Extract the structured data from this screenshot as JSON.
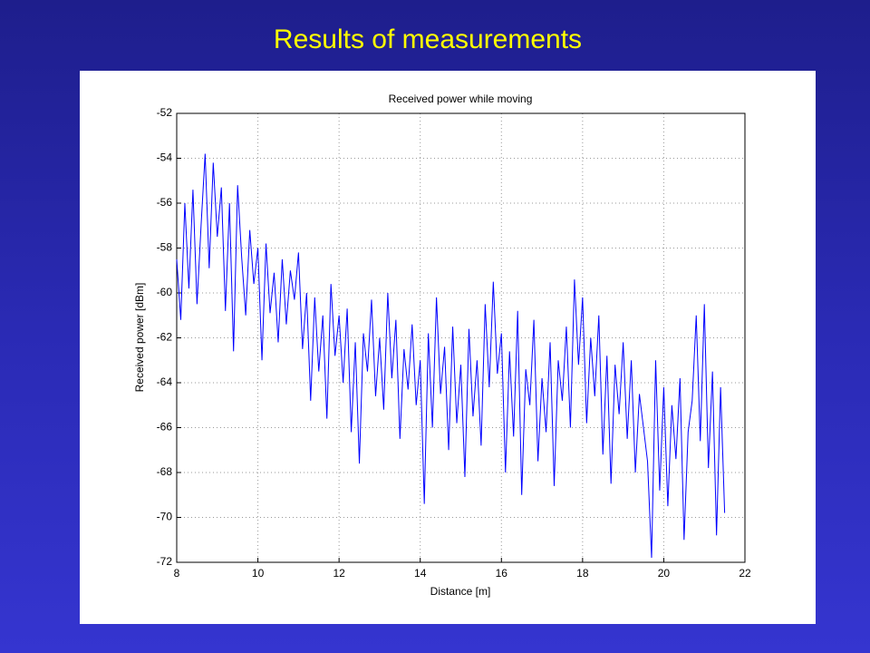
{
  "slide": {
    "title": "Results of measurements"
  },
  "chart_data": {
    "type": "line",
    "title": "Received power while moving",
    "x_label": "Distance [m]",
    "y_label": "Received power [dBm]",
    "xlim": [
      8,
      22
    ],
    "xticks": [
      8,
      10,
      12,
      14,
      16,
      18,
      20,
      22
    ],
    "ylim": [
      -72,
      -52
    ],
    "yticks": [
      -72,
      -70,
      -68,
      -66,
      -64,
      -62,
      -60,
      -58,
      -56,
      -54,
      -52
    ],
    "grid": true,
    "series": [
      {
        "color": "#0000ff",
        "x": [
          8.0,
          8.1,
          8.2,
          8.3,
          8.4,
          8.5,
          8.6,
          8.7,
          8.8,
          8.9,
          9.0,
          9.1,
          9.2,
          9.3,
          9.4,
          9.5,
          9.6,
          9.7,
          9.8,
          9.9,
          10.0,
          10.1,
          10.2,
          10.3,
          10.4,
          10.5,
          10.6,
          10.7,
          10.8,
          10.9,
          11.0,
          11.1,
          11.2,
          11.3,
          11.4,
          11.5,
          11.6,
          11.7,
          11.8,
          11.9,
          12.0,
          12.1,
          12.2,
          12.3,
          12.4,
          12.5,
          12.6,
          12.7,
          12.8,
          12.9,
          13.0,
          13.1,
          13.2,
          13.3,
          13.4,
          13.5,
          13.6,
          13.7,
          13.8,
          13.9,
          14.0,
          14.1,
          14.2,
          14.3,
          14.4,
          14.5,
          14.6,
          14.7,
          14.8,
          14.9,
          15.0,
          15.1,
          15.2,
          15.3,
          15.4,
          15.5,
          15.6,
          15.7,
          15.8,
          15.9,
          16.0,
          16.1,
          16.2,
          16.3,
          16.4,
          16.5,
          16.6,
          16.7,
          16.8,
          16.9,
          17.0,
          17.1,
          17.2,
          17.3,
          17.4,
          17.5,
          17.6,
          17.7,
          17.8,
          17.9,
          18.0,
          18.1,
          18.2,
          18.3,
          18.4,
          18.5,
          18.6,
          18.7,
          18.8,
          18.9,
          19.0,
          19.1,
          19.2,
          19.3,
          19.4,
          19.5,
          19.6,
          19.7,
          19.8,
          19.9,
          20.0,
          20.1,
          20.2,
          20.3,
          20.4,
          20.5,
          20.6,
          20.7,
          20.8,
          20.9,
          21.0,
          21.1,
          21.2,
          21.3,
          21.4,
          21.5
        ],
        "values": [
          -58.5,
          -61.2,
          -56.0,
          -59.8,
          -55.4,
          -60.5,
          -57.0,
          -53.8,
          -58.9,
          -54.2,
          -57.5,
          -55.3,
          -60.8,
          -56.0,
          -62.6,
          -55.2,
          -58.4,
          -61.0,
          -57.2,
          -59.6,
          -58.0,
          -63.0,
          -57.8,
          -60.9,
          -59.1,
          -62.2,
          -58.5,
          -61.4,
          -59.0,
          -60.3,
          -58.2,
          -62.5,
          -60.0,
          -64.8,
          -60.2,
          -63.5,
          -61.0,
          -65.6,
          -59.6,
          -62.8,
          -61.0,
          -64.0,
          -60.7,
          -66.2,
          -62.2,
          -67.6,
          -61.8,
          -63.5,
          -60.3,
          -64.6,
          -62.0,
          -65.2,
          -60.0,
          -63.8,
          -61.2,
          -66.5,
          -62.5,
          -64.3,
          -61.4,
          -65.0,
          -63.0,
          -69.4,
          -61.8,
          -66.0,
          -60.2,
          -64.5,
          -62.4,
          -67.0,
          -61.5,
          -65.8,
          -63.2,
          -68.2,
          -61.6,
          -65.5,
          -63.0,
          -66.8,
          -60.5,
          -64.2,
          -59.5,
          -63.6,
          -61.8,
          -68.0,
          -62.6,
          -66.4,
          -60.8,
          -69.0,
          -63.4,
          -65.0,
          -61.2,
          -67.5,
          -63.8,
          -66.2,
          -62.2,
          -68.6,
          -63.0,
          -64.8,
          -61.5,
          -66.0,
          -59.4,
          -63.2,
          -60.2,
          -65.8,
          -62.0,
          -64.6,
          -61.0,
          -67.2,
          -62.8,
          -68.5,
          -63.2,
          -65.4,
          -62.2,
          -66.5,
          -63.0,
          -68.0,
          -64.5,
          -66.0,
          -67.5,
          -71.8,
          -63.0,
          -68.8,
          -64.2,
          -69.5,
          -65.0,
          -67.4,
          -63.8,
          -71.0,
          -66.2,
          -64.8,
          -61.0,
          -66.6,
          -60.5,
          -67.8,
          -63.5,
          -70.8,
          -64.2,
          -69.8
        ]
      }
    ]
  }
}
